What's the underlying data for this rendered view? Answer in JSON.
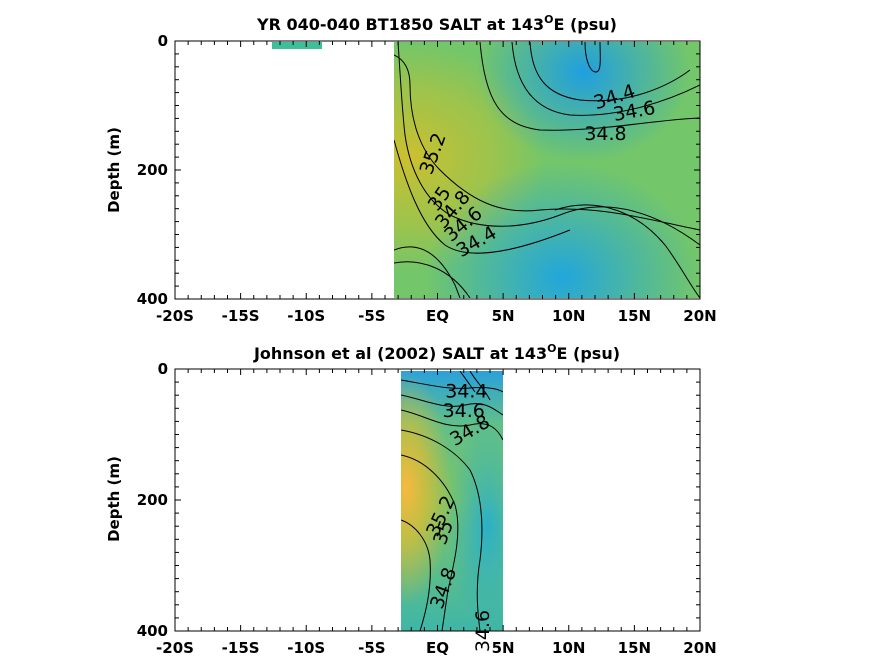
{
  "chart_data": [
    {
      "type": "heatmap",
      "title_main": "YR 040-040 BT1850 SALT at 143",
      "title_sup": "O",
      "title_tail": "E (psu)",
      "ylabel": "Depth (m)",
      "xlim": [
        -20,
        20
      ],
      "ylim": [
        0,
        400
      ],
      "y_reversed": true,
      "xticks": [
        -20,
        -15,
        -10,
        -5,
        0,
        5,
        10,
        15,
        20
      ],
      "xtick_labels": [
        "-20S",
        "-15S",
        "-10S",
        "-5S",
        "EQ",
        "5N",
        "10N",
        "15N",
        "20N"
      ],
      "yticks": [
        0,
        200,
        400
      ],
      "ytick_labels": [
        "0",
        "200",
        "400"
      ],
      "data_extent": {
        "x": [
          -3,
          20
        ],
        "y": [
          0,
          400
        ]
      },
      "extra_patch": {
        "x": [
          -12,
          -8.5
        ],
        "y": [
          0,
          10
        ]
      },
      "contour_labels": [
        {
          "text": "35.2",
          "x": -0.3,
          "y": 175,
          "angle": -70
        },
        {
          "text": "35",
          "x": 0.2,
          "y": 245,
          "angle": -55
        },
        {
          "text": "34.8",
          "x": 1.2,
          "y": 262,
          "angle": -50
        },
        {
          "text": "34.6",
          "x": 2.0,
          "y": 285,
          "angle": -40
        },
        {
          "text": "34.4",
          "x": 3.0,
          "y": 312,
          "angle": -30
        },
        {
          "text": "34.4",
          "x": 13.5,
          "y": 88,
          "angle": -18
        },
        {
          "text": "34.6",
          "x": 15.0,
          "y": 110,
          "angle": -10
        },
        {
          "text": "34.8",
          "x": 12.8,
          "y": 145,
          "angle": 0
        }
      ]
    },
    {
      "type": "heatmap",
      "title_main": "Johnson et al (2002) SALT at 143",
      "title_sup": "O",
      "title_tail": "E (psu)",
      "ylabel": "Depth (m)",
      "xlim": [
        -20,
        20
      ],
      "ylim": [
        0,
        400
      ],
      "y_reversed": true,
      "xticks": [
        -20,
        -15,
        -10,
        -5,
        0,
        5,
        10,
        15,
        20
      ],
      "xtick_labels": [
        "-20S",
        "-15S",
        "-10S",
        "-5S",
        "EQ",
        "5N",
        "10N",
        "15N",
        "20N"
      ],
      "yticks": [
        0,
        200,
        400
      ],
      "ytick_labels": [
        "0",
        "200",
        "400"
      ],
      "data_extent": {
        "x": [
          -2.5,
          5.2
        ],
        "y": [
          0,
          400
        ]
      },
      "contour_labels": [
        {
          "text": "34.4",
          "x": 2.2,
          "y": 35,
          "angle": 0
        },
        {
          "text": "34.6",
          "x": 2.0,
          "y": 65,
          "angle": 0
        },
        {
          "text": "34.8",
          "x": 2.5,
          "y": 95,
          "angle": -30
        },
        {
          "text": "35.2",
          "x": 0.3,
          "y": 225,
          "angle": -65
        },
        {
          "text": "35",
          "x": 0.5,
          "y": 250,
          "angle": -70
        },
        {
          "text": "34.8",
          "x": 0.5,
          "y": 335,
          "angle": -70
        },
        {
          "text": "34.6",
          "x": 3.5,
          "y": 400,
          "angle": -90
        }
      ]
    }
  ]
}
